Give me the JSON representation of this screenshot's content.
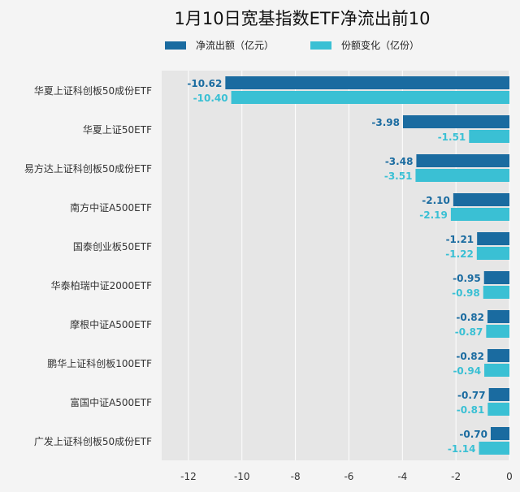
{
  "chart_data": {
    "type": "bar",
    "orientation": "horizontal",
    "title": "1月10日宽基指数ETF净流出前10",
    "categories": [
      "华夏上证科创板50成份ETF",
      "华夏上证50ETF",
      "易方达上证科创板50成份ETF",
      "南方中证A500ETF",
      "国泰创业板50ETF",
      "华泰柏瑞中证2000ETF",
      "摩根中证A500ETF",
      "鹏华上证科创板100ETF",
      "富国中证A500ETF",
      "广发上证科创板50成份ETF"
    ],
    "series": [
      {
        "name": "净流出额（亿元）",
        "color": "#1a6ba0",
        "values": [
          -10.62,
          -3.98,
          -3.48,
          -2.1,
          -1.21,
          -0.95,
          -0.82,
          -0.82,
          -0.77,
          -0.7
        ],
        "labels": [
          "-10.62",
          "-3.98",
          "-3.48",
          "-2.10",
          "-1.21",
          "-0.95",
          "-0.82",
          "-0.82",
          "-0.77",
          "-0.70"
        ]
      },
      {
        "name": "份额变化（亿份）",
        "color": "#3ac0d4",
        "values": [
          -10.4,
          -1.51,
          -3.51,
          -2.19,
          -1.22,
          -0.98,
          -0.87,
          -0.94,
          -0.81,
          -1.14
        ],
        "labels": [
          "-10.40",
          "-1.51",
          "-3.51",
          "-2.19",
          "-1.22",
          "-0.98",
          "-0.87",
          "-0.94",
          "-0.81",
          "-1.14"
        ]
      }
    ],
    "xlim": [
      -13,
      0
    ],
    "xticks": [
      -12,
      -10,
      -8,
      -6,
      -4,
      -2,
      0
    ],
    "xtick_labels": [
      "-12",
      "-10",
      "-8",
      "-6",
      "-4",
      "-2",
      "0"
    ],
    "xlabel": "",
    "ylabel": "",
    "grid": true,
    "legend_position": "top-center"
  }
}
